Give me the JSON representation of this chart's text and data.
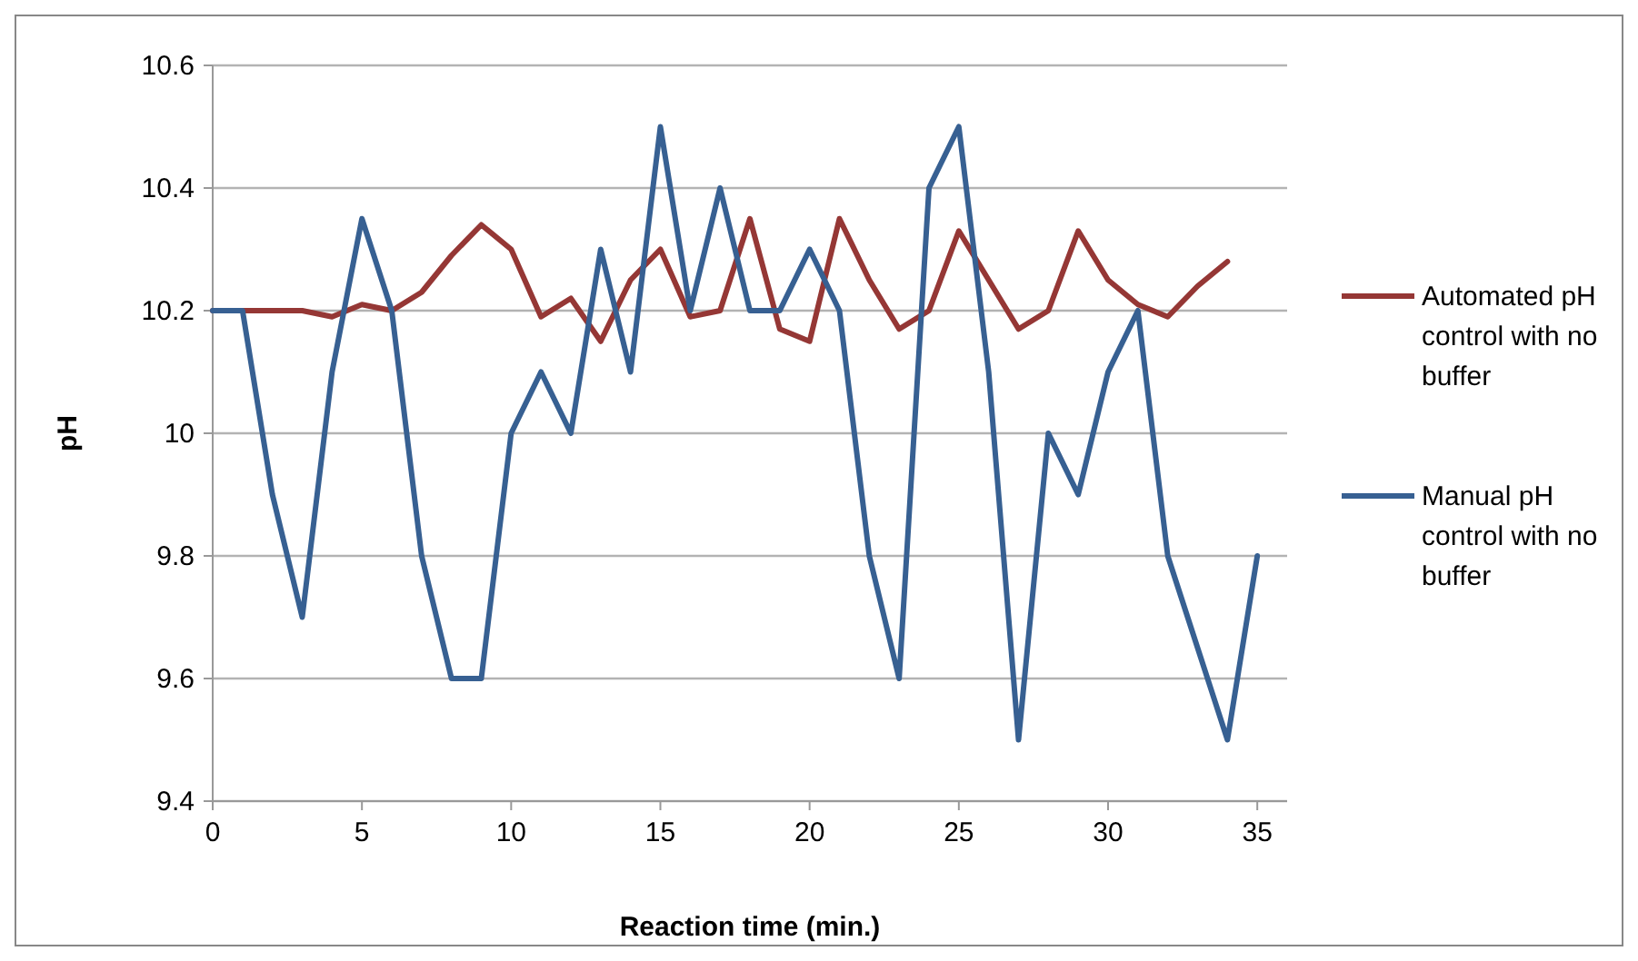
{
  "chart_data": {
    "type": "line",
    "xlabel": "Reaction time (min.)",
    "ylabel": "pH",
    "xlim": [
      0,
      36
    ],
    "xticks": [
      0,
      5,
      10,
      15,
      20,
      25,
      30,
      35
    ],
    "ylim": [
      9.4,
      10.6
    ],
    "yticks": [
      9.4,
      9.6,
      9.8,
      10,
      10.2,
      10.4,
      10.6
    ],
    "grid": "y",
    "legend": "right",
    "marker": "none",
    "line_style": "solid",
    "series": [
      {
        "name": "Automated pH control with no buffer",
        "color": "#953735",
        "x": [
          0,
          1,
          2,
          3,
          4,
          5,
          6,
          7,
          8,
          9,
          10,
          11,
          12,
          13,
          14,
          15,
          16,
          17,
          18,
          19,
          20,
          21,
          22,
          23,
          24,
          25,
          26,
          27,
          28,
          29,
          30,
          31,
          32,
          33,
          34
        ],
        "values": [
          10.2,
          10.2,
          10.2,
          10.2,
          10.19,
          10.21,
          10.2,
          10.23,
          10.29,
          10.34,
          10.3,
          10.19,
          10.22,
          10.15,
          10.25,
          10.3,
          10.19,
          10.2,
          10.35,
          10.17,
          10.15,
          10.35,
          10.25,
          10.17,
          10.2,
          10.33,
          10.25,
          10.17,
          10.2,
          10.33,
          10.25,
          10.21,
          10.19,
          10.24,
          10.28
        ]
      },
      {
        "name": "Manual pH control with no buffer",
        "color": "#376092",
        "x": [
          0,
          1,
          2,
          3,
          4,
          5,
          6,
          7,
          8,
          9,
          10,
          11,
          12,
          13,
          14,
          15,
          16,
          17,
          18,
          19,
          20,
          21,
          22,
          23,
          24,
          25,
          26,
          27,
          28,
          29,
          30,
          31,
          32,
          33,
          34,
          35
        ],
        "values": [
          10.2,
          10.2,
          9.9,
          9.7,
          10.1,
          10.35,
          10.2,
          9.8,
          9.6,
          9.6,
          10.0,
          10.1,
          10.0,
          10.3,
          10.1,
          10.5,
          10.2,
          10.4,
          10.2,
          10.2,
          10.3,
          10.2,
          9.8,
          9.6,
          10.4,
          10.5,
          10.1,
          9.5,
          10.0,
          9.9,
          10.1,
          10.2,
          9.8,
          9.65,
          9.5,
          9.8
        ]
      }
    ]
  }
}
